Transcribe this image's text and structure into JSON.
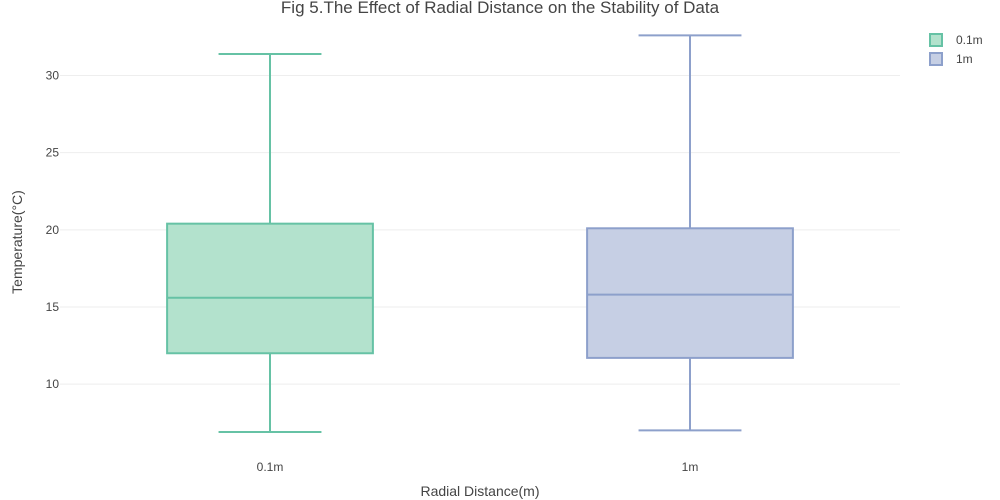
{
  "chart_data": {
    "type": "box",
    "title": "Fig 5.The Effect of Radial Distance on the Stability of Data",
    "xlabel": "Radial Distance(m)",
    "ylabel": "Temperature(°C)",
    "categories": [
      "0.1m",
      "1m"
    ],
    "ylim": [
      5.6,
      33.6
    ],
    "yticks": [
      10,
      15,
      20,
      25,
      30
    ],
    "grid": true,
    "legend_position": "top-right",
    "series": [
      {
        "name": "0.1m",
        "category": "0.1m",
        "min": 6.9,
        "q1": 12.0,
        "median": 15.6,
        "q3": 20.4,
        "max": 31.4,
        "stroke": "#66c2a5",
        "fill": "#b3e2cd"
      },
      {
        "name": "1m",
        "category": "1m",
        "min": 7.0,
        "q1": 11.7,
        "median": 15.8,
        "q3": 20.1,
        "max": 32.6,
        "stroke": "#8da0cb",
        "fill": "#c6cfe4"
      }
    ]
  }
}
